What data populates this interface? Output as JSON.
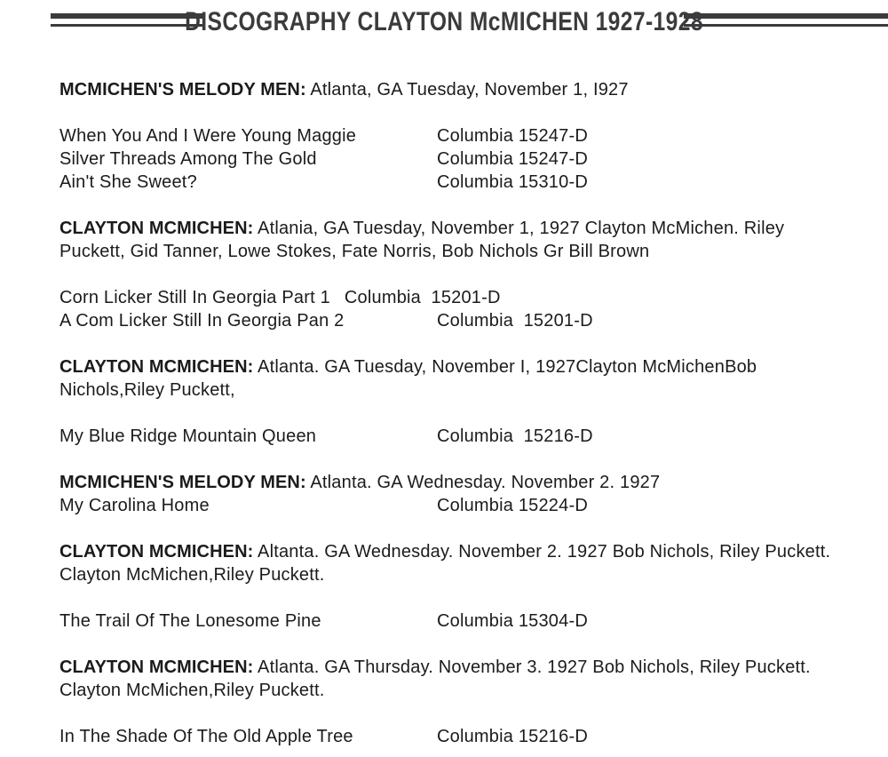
{
  "page": {
    "background": "#ffffff",
    "text_color": "#1b1b1d",
    "accent_color": "#3b3b3d"
  },
  "header": {
    "title": "DISCOGRAPHY CLAYTON McMICHEN 1927-1928"
  },
  "sessions": [
    {
      "name": "MCMICHEN'S MELODY MEN:",
      "details": "Atlanta, GA Tuesday, November 1, I927",
      "details_line2": "",
      "gap_before_songs": true,
      "songs": [
        {
          "title": "When You And I Were Young Maggie",
          "label": "Columbia 15247-D"
        },
        {
          "title": "Silver Threads Among The Gold",
          "label": "Columbia 15247-D"
        },
        {
          "title": "Ain't She Sweet?",
          "label": "Columbia 15310-D"
        }
      ]
    },
    {
      "name": "CLAYTON MCMICHEN:",
      "details": "Atlania, GA Tuesday, November 1, 1927 Clayton McMichen. Riley",
      "details_line2": "Puckett, Gid Tanner, Lowe Stokes, Fate Norris, Bob Nichols Gr Bill Brown",
      "gap_before_songs": true,
      "songs": [
        {
          "title": "Corn Licker Still In Georgia Part 1",
          "label": "Columbia  15201-D",
          "inline": true
        },
        {
          "title": "A Com Licker Still In Georgia Pan 2",
          "label": "Columbia  15201-D"
        }
      ]
    },
    {
      "name": "CLAYTON MCMICHEN:",
      "details": "Atlanta. GA Tuesday, November I, 1927Clayton McMichenBob",
      "details_line2": "Nichols,Riley Puckett,",
      "gap_before_songs": true,
      "songs": [
        {
          "title": "My Blue Ridge Mountain Queen",
          "label": "Columbia  15216-D"
        }
      ]
    },
    {
      "name": "MCMICHEN'S MELODY MEN:",
      "details": "Atlanta. GA Wednesday. November 2. 1927",
      "details_line2": "",
      "gap_before_songs": false,
      "songs": [
        {
          "title": "My Carolina Home",
          "label": "Columbia 15224-D"
        }
      ]
    },
    {
      "name": "CLAYTON MCMICHEN:",
      "details": "Altanta. GA Wednesday. November 2. 1927 Bob Nichols, Riley Puckett.",
      "details_line2": "Clayton McMichen,Riley Puckett.",
      "gap_before_songs": true,
      "songs": [
        {
          "title": "The Trail Of The Lonesome Pine",
          "label": "Columbia 15304-D"
        }
      ]
    },
    {
      "name": "CLAYTON MCMICHEN:",
      "details": "Atlanta. GA Thursday. November 3. 1927 Bob Nichols, Riley Puckett.",
      "details_line2": "Clayton McMichen,Riley Puckett.",
      "gap_before_songs": true,
      "songs": [
        {
          "title": "In The Shade Of The Old Apple Tree",
          "label": "Columbia 15216-D"
        }
      ]
    }
  ]
}
